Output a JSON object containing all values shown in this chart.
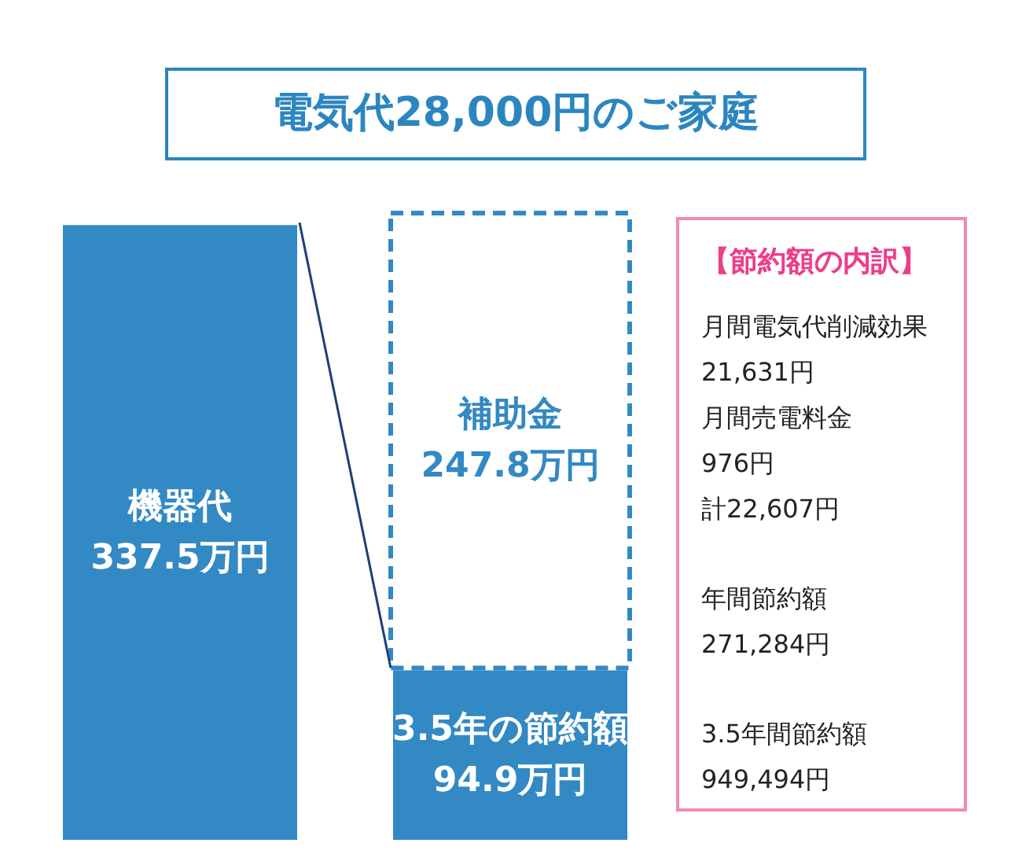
{
  "chart_data": {
    "type": "bar",
    "title": "電気代28,000円のご家庭",
    "stacked": true,
    "categories": [
      null,
      null
    ],
    "series": [
      {
        "color": "#3289c3",
        "values": [
          337.5,
          94.9
        ],
        "value_labels": [
          "機器代\n337.5万円",
          "3.5年の節約額\n94.9万円"
        ]
      },
      {
        "color": "#3289c3",
        "values": [
          null,
          247.8
        ],
        "line_style": "dashed",
        "value_labels": [
          null,
          "補助金\n247.8万円"
        ]
      }
    ],
    "annotations": [
      "【節約額の内訳】",
      "月間電気代削減効果",
      "21,631円",
      "月間売電料金",
      "976円",
      "計22,607円",
      "年間節約額",
      "271,284円",
      "3.5年間節約額",
      "949,494円"
    ],
    "grid": false
  }
}
